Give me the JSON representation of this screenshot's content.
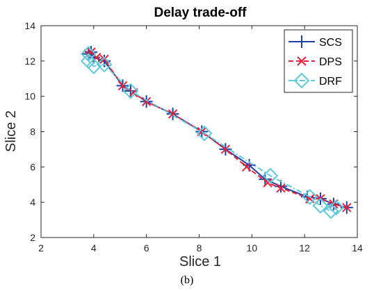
{
  "chart_data": {
    "type": "line",
    "title": "Delay trade-off",
    "xlabel": "Slice 1",
    "ylabel": "Slice 2",
    "xlim": [
      2,
      14
    ],
    "ylim": [
      2,
      14
    ],
    "xticks": [
      2,
      4,
      6,
      8,
      10,
      12,
      14
    ],
    "yticks": [
      2,
      4,
      6,
      8,
      10,
      12,
      14
    ],
    "grid": false,
    "legend_position": "top-right",
    "series": [
      {
        "name": "SCS",
        "color": "#1f3f9f",
        "marker": "plus",
        "line_style": "solid",
        "x": [
          3.8,
          3.9,
          4.0,
          4.4,
          5.1,
          5.4,
          6.0,
          7.0,
          8.1,
          9.0,
          9.9,
          10.5,
          11.1,
          12.1,
          12.6,
          13.1,
          13.6
        ],
        "y": [
          12.4,
          12.5,
          12.2,
          12.0,
          10.6,
          10.3,
          9.7,
          9.0,
          8.0,
          7.0,
          6.1,
          5.3,
          4.9,
          4.3,
          4.2,
          3.9,
          3.7
        ]
      },
      {
        "name": "DPS",
        "color": "#e8203a",
        "marker": "x",
        "line_style": "dashed",
        "x": [
          3.8,
          3.9,
          4.1,
          4.4,
          5.1,
          5.5,
          6.0,
          7.0,
          8.1,
          9.0,
          9.8,
          10.6,
          11.1,
          12.2,
          12.6,
          13.1,
          13.6
        ],
        "y": [
          12.4,
          12.5,
          12.2,
          12.1,
          10.6,
          10.2,
          9.7,
          9.0,
          8.0,
          7.0,
          6.0,
          5.1,
          4.8,
          4.2,
          4.2,
          3.9,
          3.7
        ]
      },
      {
        "name": "DRF",
        "color": "#5ec8dd",
        "marker": "diamond",
        "line_style": "dashdot",
        "x": [
          3.8,
          3.8,
          4.0,
          4.4,
          5.4,
          8.2,
          10.7,
          12.2,
          12.6,
          13.0,
          13.2
        ],
        "y": [
          12.4,
          12.0,
          11.7,
          11.8,
          10.3,
          7.9,
          5.5,
          4.3,
          3.8,
          3.5,
          3.7
        ]
      }
    ]
  },
  "caption": "(b)"
}
